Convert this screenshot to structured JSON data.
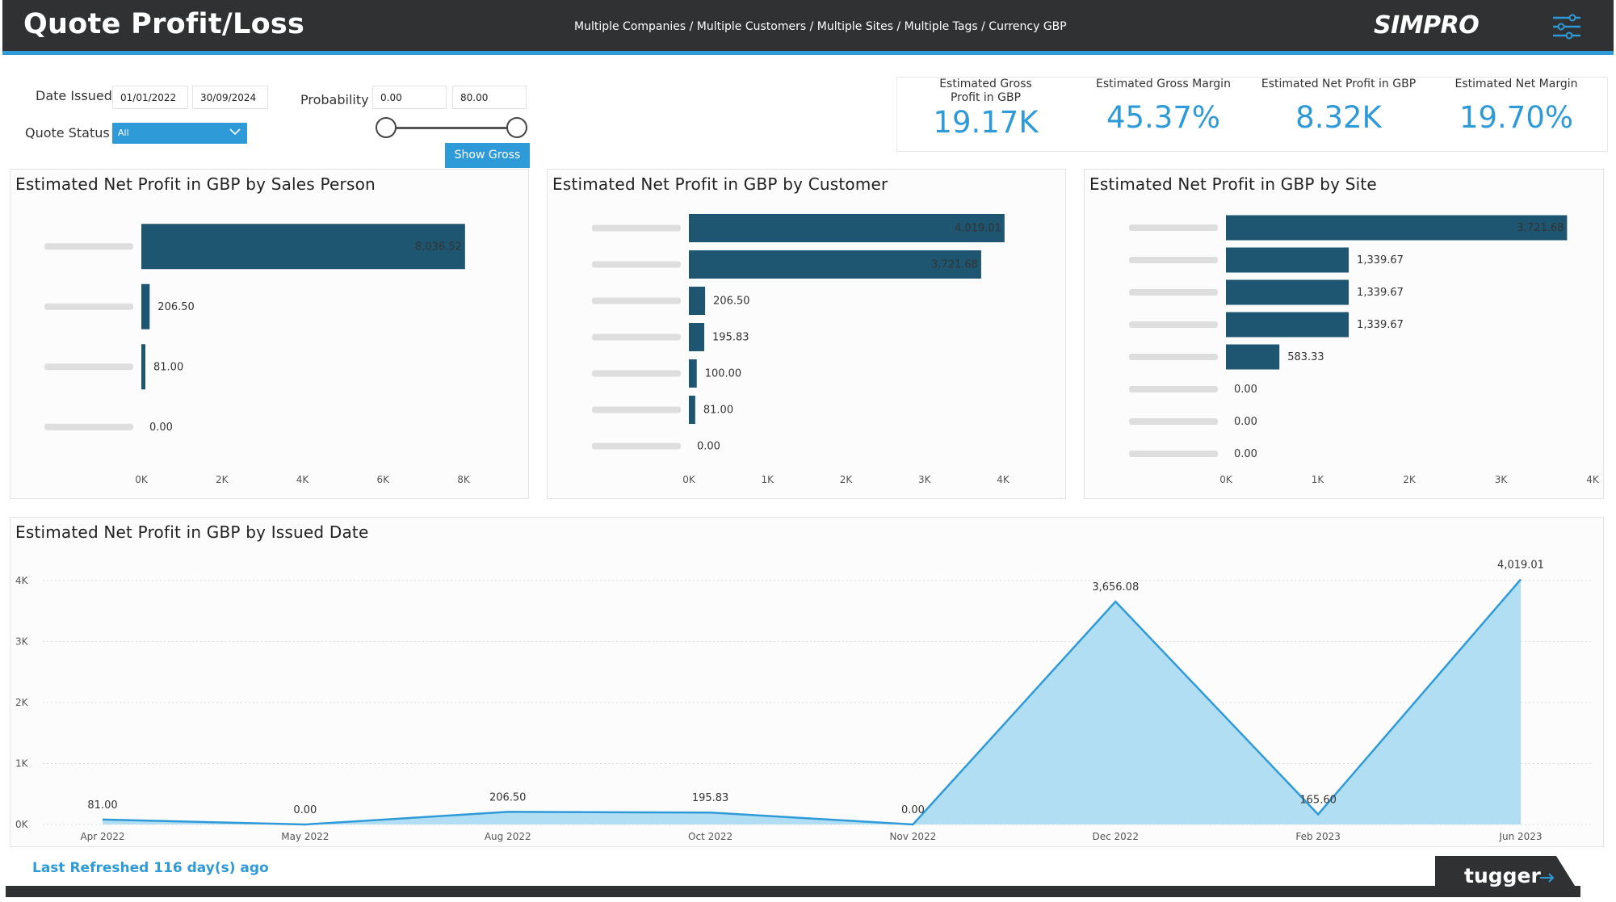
{
  "header": {
    "title": "Quote Profit/Loss",
    "breadcrumb": "Multiple Companies / Multiple Customers / Multiple Sites / Multiple Tags / Currency GBP",
    "logo": "SIMPRO",
    "menu_icon": "sliders-menu-icon"
  },
  "filters": {
    "date_issued_label": "Date Issued",
    "date_from": "01/01/2022",
    "date_to": "30/09/2024",
    "probability_label": "Probability",
    "prob_min": "0.00",
    "prob_max": "80.00",
    "quote_status_label": "Quote Status",
    "quote_status_value": "All",
    "show_gross_label": "Show Gross"
  },
  "kpis": [
    {
      "label": "Estimated Gross Profit in GBP",
      "value": "19.17K"
    },
    {
      "label": "Estimated Gross Margin",
      "value": "45.37%"
    },
    {
      "label": "Estimated Net Profit in GBP",
      "value": "8.32K"
    },
    {
      "label": "Estimated Net Margin",
      "value": "19.70%"
    }
  ],
  "footer": {
    "last_refreshed": "Last Refreshed 116 day(s) ago",
    "brand": "tugger"
  },
  "colors": {
    "header_bg": "#2f3133",
    "accent": "#2f9ad8",
    "bar": "#1e5570",
    "area_fill": "#aedcf2",
    "line": "#2f9ad8"
  },
  "chart_data": [
    {
      "type": "bar",
      "orientation": "horizontal",
      "title": "Estimated Net Profit in GBP by Sales Person",
      "categories": [
        "",
        "",
        "",
        ""
      ],
      "values": [
        8036.52,
        206.5,
        81.0,
        0.0
      ],
      "value_labels": [
        "8,036.52",
        "206.50",
        "81.00",
        "0.00"
      ],
      "ticks": [
        "0K",
        "2K",
        "4K",
        "6K",
        "8K"
      ],
      "xlim": [
        0,
        8000
      ]
    },
    {
      "type": "bar",
      "orientation": "horizontal",
      "title": "Estimated Net Profit in GBP by Customer",
      "categories": [
        "",
        "",
        "",
        "",
        "",
        "",
        ""
      ],
      "values": [
        4019.01,
        3721.68,
        206.5,
        195.83,
        100.0,
        81.0,
        0.0
      ],
      "value_labels": [
        "4,019.01",
        "3,721.68",
        "206.50",
        "195.83",
        "100.00",
        "81.00",
        "0.00"
      ],
      "ticks": [
        "0K",
        "1K",
        "2K",
        "3K",
        "4K"
      ],
      "xlim": [
        0,
        4000
      ]
    },
    {
      "type": "bar",
      "orientation": "horizontal",
      "title": "Estimated Net Profit in GBP by Site",
      "categories": [
        "",
        "",
        "",
        "",
        "",
        "",
        "",
        ""
      ],
      "values": [
        3721.68,
        1339.67,
        1339.67,
        1339.67,
        583.33,
        0.0,
        0.0,
        0.0
      ],
      "value_labels": [
        "3,721.68",
        "1,339.67",
        "1,339.67",
        "1,339.67",
        "583.33",
        "0.00",
        "0.00",
        "0.00"
      ],
      "ticks": [
        "0K",
        "1K",
        "2K",
        "3K",
        "4K"
      ],
      "xlim": [
        0,
        4000
      ]
    },
    {
      "type": "area",
      "title": "Estimated Net Profit in GBP by Issued Date",
      "categories": [
        "Apr 2022",
        "May 2022",
        "Aug 2022",
        "Oct 2022",
        "Nov 2022",
        "Dec 2022",
        "Feb 2023",
        "Jun 2023"
      ],
      "values": [
        81.0,
        0.0,
        206.5,
        195.83,
        0.0,
        3656.08,
        165.6,
        4019.01
      ],
      "value_labels": [
        "81.00",
        "0.00",
        "206.50",
        "195.83",
        "0.00",
        "3,656.08",
        "165.60",
        "4,019.01"
      ],
      "y_ticks": [
        "0K",
        "1K",
        "2K",
        "3K",
        "4K"
      ],
      "ylim": [
        0,
        4000
      ],
      "grid": true
    }
  ]
}
